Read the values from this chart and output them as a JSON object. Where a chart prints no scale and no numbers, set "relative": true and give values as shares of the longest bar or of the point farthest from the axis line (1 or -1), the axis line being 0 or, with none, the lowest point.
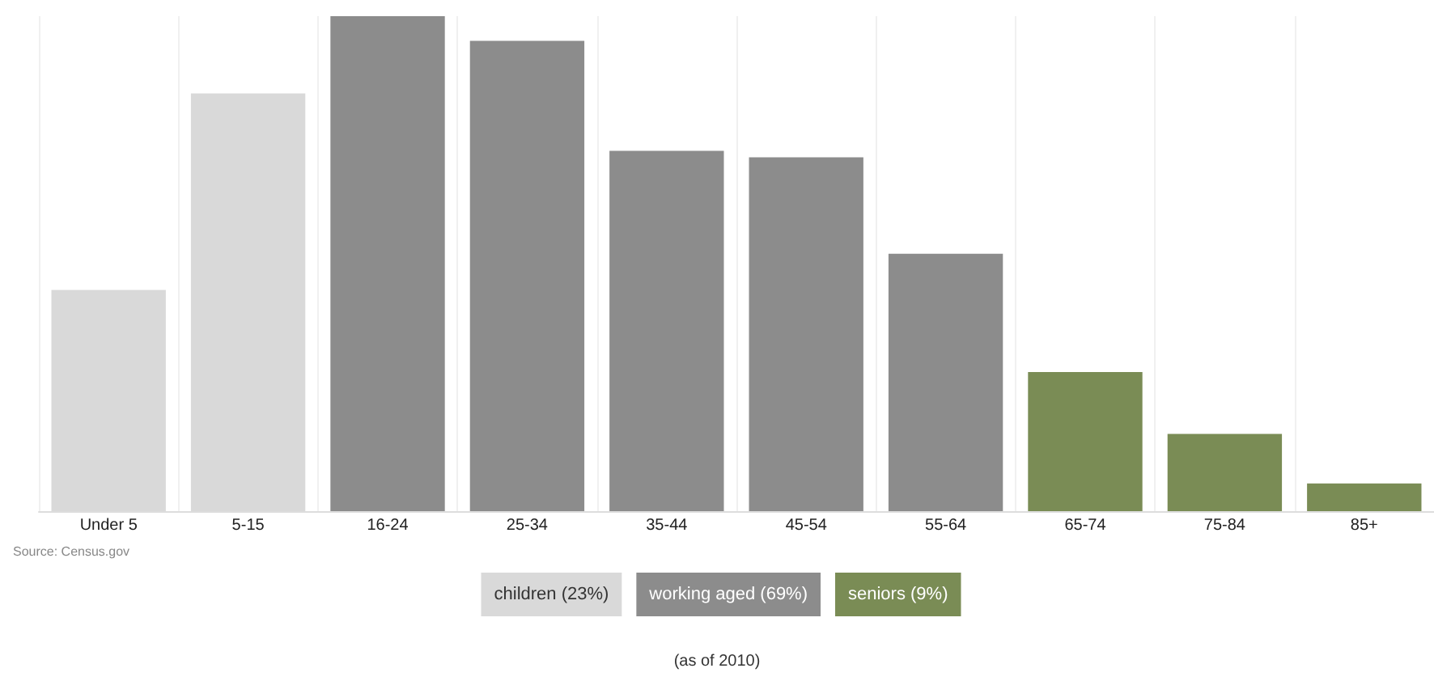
{
  "chart_data": {
    "type": "bar",
    "relative": true,
    "categories": [
      "Under 5",
      "5-15",
      "16-24",
      "25-34",
      "35-44",
      "45-54",
      "55-64",
      "65-74",
      "75-84",
      "85+"
    ],
    "series": [
      {
        "name": "children (23%)",
        "color": "#d9d9d9",
        "values": [
          0.447,
          0.844,
          null,
          null,
          null,
          null,
          null,
          null,
          null,
          null
        ]
      },
      {
        "name": "working aged (69%)",
        "color": "#8c8c8c",
        "values": [
          null,
          null,
          1,
          0.95,
          0.728,
          0.715,
          0.52,
          null,
          null,
          null
        ]
      },
      {
        "name": "seniors (9%)",
        "color": "#7a8c55",
        "values": [
          null,
          null,
          null,
          null,
          null,
          null,
          null,
          0.281,
          0.156,
          0.056
        ]
      }
    ],
    "legend": "bottom",
    "grid": "x",
    "annotations": [
      "Source: Census.gov",
      "(as of 2010)"
    ]
  }
}
